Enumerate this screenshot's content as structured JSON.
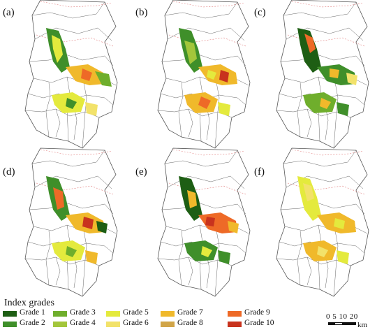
{
  "panels": [
    {
      "label": "(a)"
    },
    {
      "label": "(b)"
    },
    {
      "label": "(c)"
    },
    {
      "label": "(d)"
    },
    {
      "label": "(e)"
    },
    {
      "label": "(f)"
    }
  ],
  "legend": {
    "title": "Index grades",
    "grades": [
      {
        "label": "Grade 1",
        "color": "#1e5e14"
      },
      {
        "label": "Grade 2",
        "color": "#3f8f2a"
      },
      {
        "label": "Grade 3",
        "color": "#6fae2c"
      },
      {
        "label": "Grade 4",
        "color": "#a3c63b"
      },
      {
        "label": "Grade 5",
        "color": "#e4ea3d"
      },
      {
        "label": "Grade 6",
        "color": "#f2e26a"
      },
      {
        "label": "Grade 7",
        "color": "#f0b92b"
      },
      {
        "label": "Grade 8",
        "color": "#d1a548"
      },
      {
        "label": "Grade 9",
        "color": "#ee6a27"
      },
      {
        "label": "Grade 10",
        "color": "#c8331e"
      }
    ]
  },
  "scale": {
    "ticks": "0 5 10    20",
    "unit": "km"
  }
}
